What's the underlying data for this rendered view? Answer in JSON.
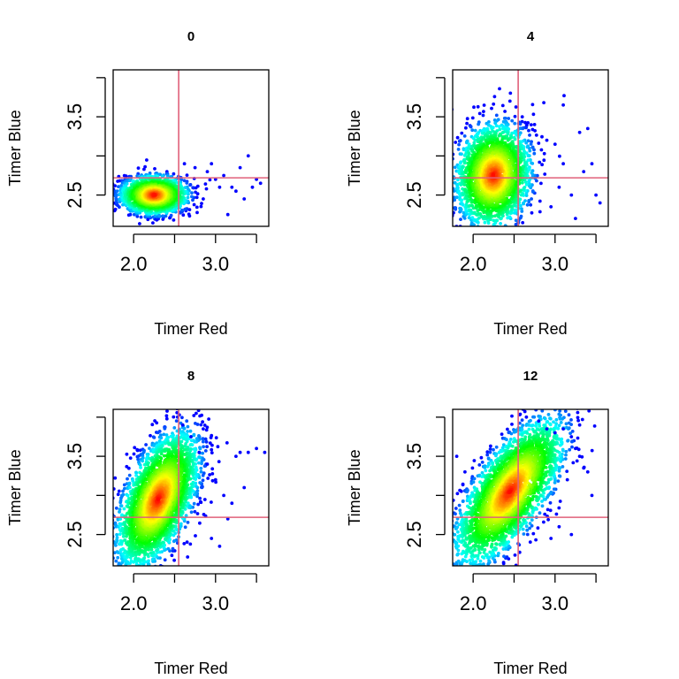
{
  "chart_data": [
    {
      "type": "scatter",
      "title": "0",
      "xlabel": "Timer Red",
      "ylabel": "Timer Blue",
      "xlim": [
        1.75,
        3.65
      ],
      "ylim": [
        2.1,
        4.1
      ],
      "xticks": [
        2.0,
        2.5,
        3.0,
        3.5
      ],
      "xtick_labels": [
        "2.0",
        "",
        "3.0",
        ""
      ],
      "yticks": [
        2.5,
        3.0,
        3.5,
        4.0
      ],
      "ytick_labels": [
        "2.5",
        "",
        "3.5",
        ""
      ],
      "threshold_lines": {
        "x": 2.55,
        "y": 2.72,
        "color": "#e0607a"
      },
      "density": {
        "mean": [
          2.25,
          2.5
        ],
        "sd": [
          0.2,
          0.12
        ],
        "corr": 0.0,
        "n": 1700
      },
      "outliers": [
        [
          2.62,
          2.9
        ],
        [
          2.75,
          2.85
        ],
        [
          2.9,
          2.8
        ],
        [
          3.0,
          2.7
        ],
        [
          3.05,
          2.6
        ],
        [
          3.1,
          2.75
        ],
        [
          3.2,
          2.6
        ],
        [
          3.25,
          2.55
        ],
        [
          3.3,
          2.85
        ],
        [
          3.4,
          3.0
        ],
        [
          3.45,
          2.6
        ],
        [
          3.5,
          2.7
        ],
        [
          3.55,
          2.65
        ],
        [
          3.15,
          2.25
        ],
        [
          2.95,
          2.9
        ],
        [
          2.85,
          2.45
        ],
        [
          3.35,
          2.45
        ]
      ],
      "grid": false,
      "legend": "none"
    },
    {
      "type": "scatter",
      "title": "4",
      "xlabel": "Timer Red",
      "ylabel": "Timer Blue",
      "xlim": [
        1.75,
        3.65
      ],
      "ylim": [
        2.1,
        4.1
      ],
      "xticks": [
        2.0,
        2.5,
        3.0,
        3.5
      ],
      "xtick_labels": [
        "2.0",
        "",
        "3.0",
        ""
      ],
      "yticks": [
        2.5,
        3.0,
        3.5,
        4.0
      ],
      "ytick_labels": [
        "2.5",
        "",
        "3.5",
        ""
      ],
      "threshold_lines": {
        "x": 2.55,
        "y": 2.72,
        "color": "#e0607a"
      },
      "density": {
        "mean": [
          2.25,
          2.75
        ],
        "sd": [
          0.22,
          0.32
        ],
        "corr": 0.1,
        "n": 2400
      },
      "outliers": [
        [
          2.45,
          3.7
        ],
        [
          2.6,
          3.5
        ],
        [
          2.75,
          3.4
        ],
        [
          2.9,
          3.2
        ],
        [
          3.0,
          3.15
        ],
        [
          3.1,
          2.9
        ],
        [
          3.2,
          2.5
        ],
        [
          3.3,
          3.3
        ],
        [
          3.35,
          2.8
        ],
        [
          3.4,
          3.35
        ],
        [
          3.45,
          2.9
        ],
        [
          3.5,
          2.5
        ],
        [
          3.55,
          2.4
        ],
        [
          3.1,
          3.65
        ],
        [
          3.05,
          2.6
        ],
        [
          3.25,
          2.2
        ],
        [
          2.95,
          2.35
        ]
      ],
      "grid": false,
      "legend": "none"
    },
    {
      "type": "scatter",
      "title": "8",
      "xlabel": "Timer Red",
      "ylabel": "Timer Blue",
      "xlim": [
        1.75,
        3.65
      ],
      "ylim": [
        2.1,
        4.1
      ],
      "xticks": [
        2.0,
        2.5,
        3.0,
        3.5
      ],
      "xtick_labels": [
        "2.0",
        "",
        "3.0",
        ""
      ],
      "yticks": [
        2.5,
        3.0,
        3.5,
        4.0
      ],
      "ytick_labels": [
        "2.5",
        "",
        "3.5",
        ""
      ],
      "threshold_lines": {
        "x": 2.55,
        "y": 2.72,
        "color": "#e0607a"
      },
      "density": {
        "mean": [
          2.3,
          2.95
        ],
        "sd": [
          0.24,
          0.42
        ],
        "corr": 0.55,
        "n": 3000
      },
      "outliers": [
        [
          2.6,
          3.9
        ],
        [
          2.7,
          3.75
        ],
        [
          2.8,
          3.55
        ],
        [
          2.9,
          3.4
        ],
        [
          3.0,
          3.2
        ],
        [
          3.1,
          3.0
        ],
        [
          3.2,
          2.9
        ],
        [
          3.25,
          3.5
        ],
        [
          3.3,
          3.55
        ],
        [
          3.35,
          3.1
        ],
        [
          3.4,
          3.55
        ],
        [
          3.5,
          3.6
        ],
        [
          3.6,
          3.55
        ],
        [
          3.15,
          2.7
        ],
        [
          2.95,
          2.45
        ],
        [
          3.05,
          2.35
        ],
        [
          2.85,
          3.85
        ]
      ],
      "grid": false,
      "legend": "none"
    },
    {
      "type": "scatter",
      "title": "12",
      "xlabel": "Timer Red",
      "ylabel": "Timer Blue",
      "xlim": [
        1.75,
        3.65
      ],
      "ylim": [
        2.1,
        4.1
      ],
      "xticks": [
        2.0,
        2.5,
        3.0,
        3.5
      ],
      "xtick_labels": [
        "2.0",
        "",
        "3.0",
        ""
      ],
      "yticks": [
        2.5,
        3.0,
        3.5,
        4.0
      ],
      "ytick_labels": [
        "2.5",
        "",
        "3.5",
        ""
      ],
      "threshold_lines": {
        "x": 2.55,
        "y": 2.72,
        "color": "#e0607a"
      },
      "density": {
        "mean": [
          2.45,
          3.05
        ],
        "sd": [
          0.32,
          0.45
        ],
        "corr": 0.7,
        "n": 3200
      },
      "outliers": [
        [
          2.65,
          4.0
        ],
        [
          2.8,
          3.95
        ],
        [
          2.9,
          3.85
        ],
        [
          3.0,
          3.8
        ],
        [
          3.1,
          3.85
        ],
        [
          3.2,
          3.75
        ],
        [
          3.25,
          3.6
        ],
        [
          3.3,
          3.5
        ],
        [
          3.35,
          3.35
        ],
        [
          3.4,
          3.3
        ],
        [
          3.15,
          3.2
        ],
        [
          3.05,
          2.6
        ],
        [
          3.2,
          2.5
        ],
        [
          2.95,
          2.45
        ],
        [
          1.8,
          3.5
        ],
        [
          1.9,
          3.3
        ],
        [
          3.3,
          3.9
        ],
        [
          3.45,
          3.0
        ]
      ],
      "grid": false,
      "legend": "none"
    }
  ]
}
